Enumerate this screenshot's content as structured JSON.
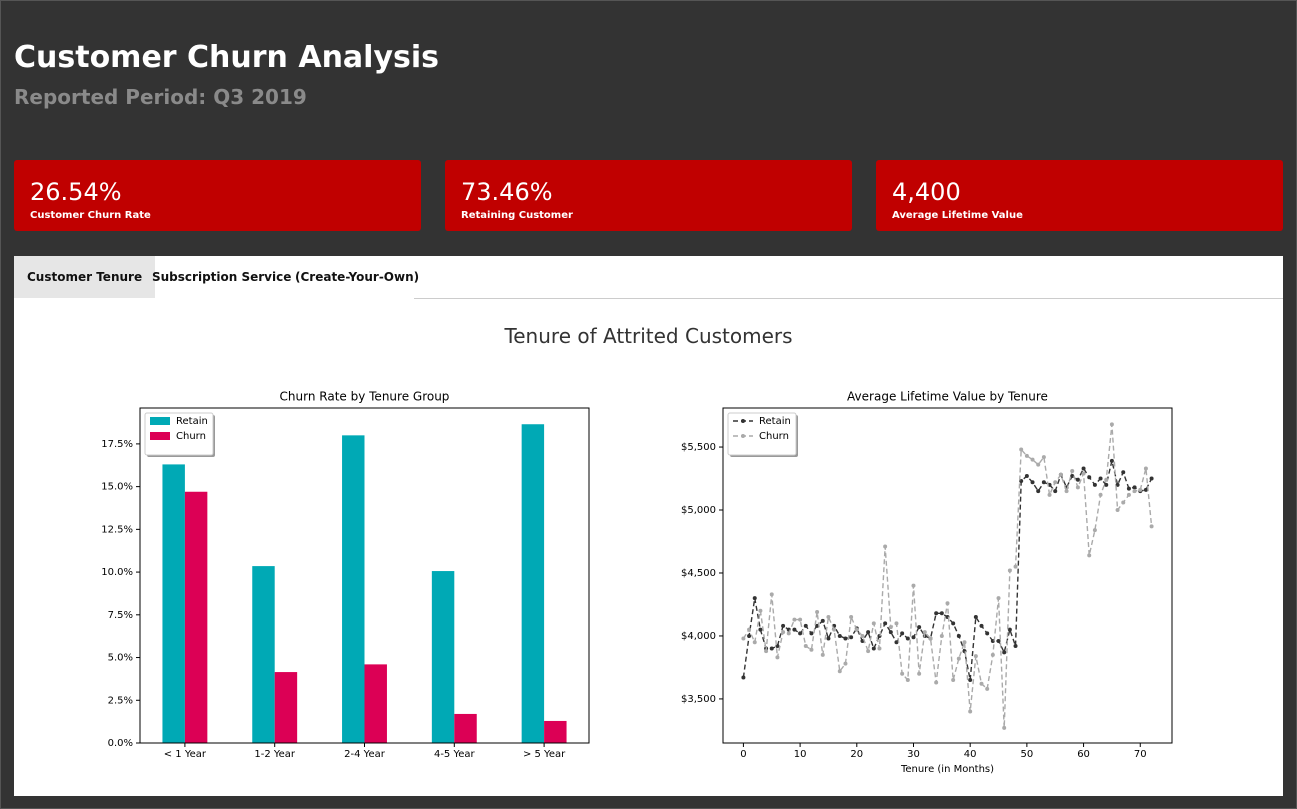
{
  "header": {
    "title": "Customer Churn Analysis",
    "subtitle": "Reported Period: Q3 2019"
  },
  "kpis": [
    {
      "value": "26.54%",
      "label": "Customer Churn Rate"
    },
    {
      "value": "73.46%",
      "label": "Retaining Customer"
    },
    {
      "value": "4,400",
      "label": "Average Lifetime Value"
    }
  ],
  "tabs": [
    "Customer Tenure",
    "Subscription Service",
    "(Create-Your-Own)"
  ],
  "panel_title": "Tenure of Attrited Customers",
  "chart_data": [
    {
      "type": "bar",
      "title": "Churn Rate by Tenure Group",
      "legend": "upper left",
      "categories": [
        "< 1 Year",
        "1-2 Year",
        "2-4 Year",
        "4-5 Year",
        "> 5 Year"
      ],
      "series": [
        {
          "name": "Retain",
          "color": "#00a9b5",
          "values": [
            16.3,
            10.35,
            18.0,
            10.06,
            18.65
          ]
        },
        {
          "name": "Churn",
          "color": "#dc0055",
          "values": [
            14.7,
            4.15,
            4.6,
            1.7,
            1.29
          ]
        }
      ],
      "ylim": [
        0,
        19.6
      ],
      "yticks": [
        {
          "value": 0,
          "label": "0.0%"
        },
        {
          "value": 2.5,
          "label": "2.5%"
        },
        {
          "value": 5,
          "label": "5.0%"
        },
        {
          "value": 7.5,
          "label": "7.5%"
        },
        {
          "value": 10,
          "label": "10.0%"
        },
        {
          "value": 12.5,
          "label": "12.5%"
        },
        {
          "value": 15,
          "label": "15.0%"
        },
        {
          "value": 17.5,
          "label": "17.5%"
        }
      ]
    },
    {
      "type": "line",
      "title": "Average Lifetime Value by Tenure",
      "xlabel": "Tenure (in Months)",
      "legend": "upper left",
      "x": [
        0,
        1,
        2,
        3,
        4,
        5,
        6,
        7,
        8,
        9,
        10,
        11,
        12,
        13,
        14,
        15,
        16,
        17,
        18,
        19,
        20,
        21,
        22,
        23,
        24,
        25,
        26,
        27,
        28,
        29,
        30,
        31,
        32,
        33,
        34,
        35,
        36,
        37,
        38,
        39,
        40,
        41,
        42,
        43,
        44,
        45,
        46,
        47,
        48,
        49,
        50,
        51,
        52,
        53,
        54,
        55,
        56,
        57,
        58,
        59,
        60,
        61,
        62,
        63,
        64,
        65,
        66,
        67,
        68,
        69,
        70,
        71,
        72
      ],
      "series": [
        {
          "name": "Retain",
          "color": "#333333",
          "values": [
            3670,
            4000,
            4300,
            4050,
            3900,
            3900,
            3920,
            4080,
            4050,
            4050,
            4020,
            4080,
            4020,
            4080,
            4120,
            3980,
            4080,
            4000,
            3980,
            3990,
            4060,
            3960,
            4030,
            3900,
            4000,
            4100,
            4030,
            3950,
            4020,
            3980,
            3990,
            4070,
            4000,
            3980,
            4180,
            4180,
            4150,
            4100,
            4000,
            3880,
            3650,
            4150,
            4080,
            4020,
            3960,
            3960,
            3870,
            4050,
            3920,
            5230,
            5270,
            5220,
            5150,
            5220,
            5200,
            5150,
            5280,
            5180,
            5270,
            5240,
            5330,
            5260,
            5200,
            5250,
            5200,
            5390,
            5200,
            5300,
            5170,
            5180,
            5150,
            5160,
            5250
          ]
        },
        {
          "name": "Churn",
          "color": "#aaaaaa",
          "values": [
            3980,
            4050,
            3950,
            4200,
            3880,
            4330,
            3830,
            4030,
            4020,
            4130,
            4130,
            3920,
            3890,
            4190,
            3850,
            4150,
            4050,
            3720,
            3780,
            4150,
            4050,
            4000,
            3880,
            4100,
            3900,
            4710,
            4070,
            4100,
            3700,
            3650,
            4400,
            3700,
            4030,
            3980,
            3630,
            4000,
            4260,
            3650,
            3820,
            3950,
            3400,
            3840,
            3620,
            3580,
            3850,
            4300,
            3270,
            4520,
            4550,
            5480,
            5430,
            5400,
            5360,
            5420,
            5120,
            5220,
            5280,
            5150,
            5310,
            5180,
            5290,
            4640,
            4840,
            5120,
            5240,
            5680,
            5000,
            5060,
            5120,
            5150,
            5160,
            5330,
            4870
          ]
        }
      ],
      "xlim": [
        -3.6,
        75.6
      ],
      "xticks": [
        0,
        10,
        20,
        30,
        40,
        50,
        60,
        70
      ],
      "ylim": [
        3150,
        5810
      ],
      "yticks": [
        {
          "value": 3500,
          "label": "$3,500"
        },
        {
          "value": 4000,
          "label": "$4,000"
        },
        {
          "value": 4500,
          "label": "$4,500"
        },
        {
          "value": 5000,
          "label": "$5,000"
        },
        {
          "value": 5500,
          "label": "$5,500"
        }
      ]
    }
  ]
}
